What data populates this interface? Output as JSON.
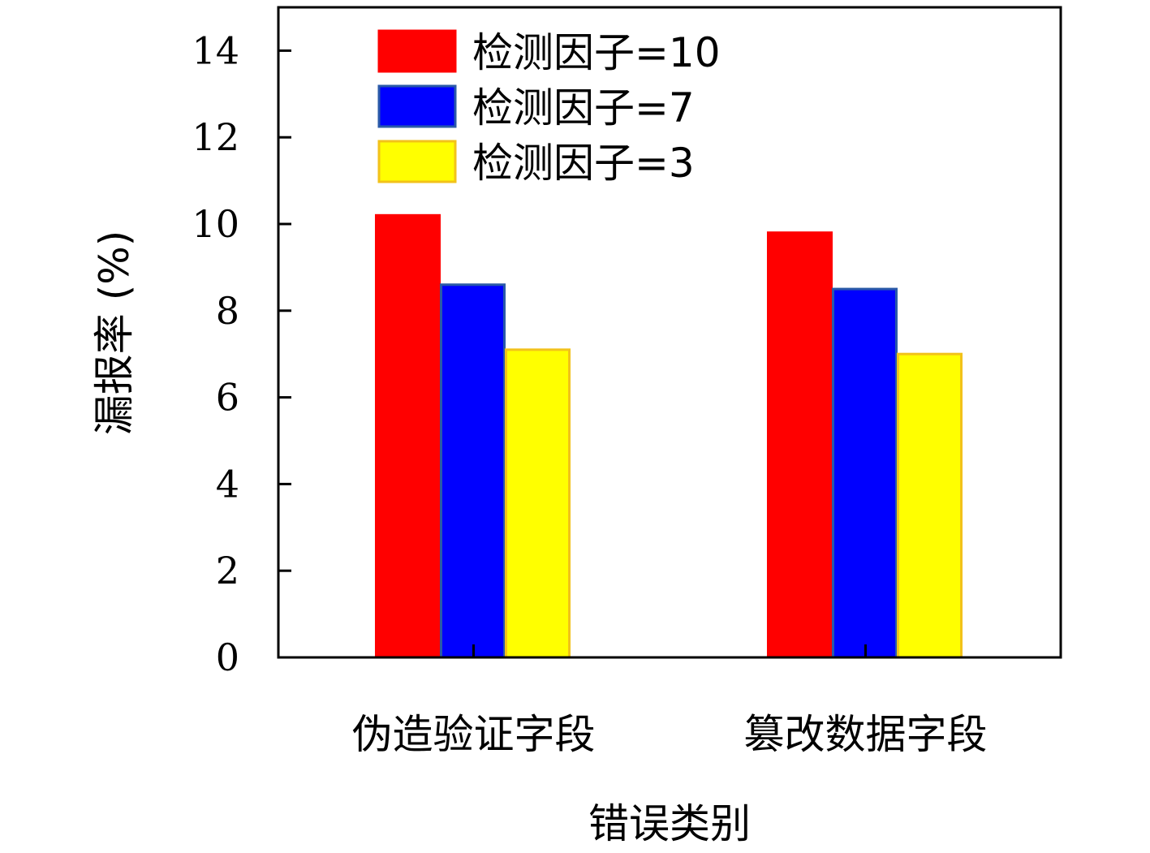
{
  "chart_data": {
    "type": "bar",
    "categories": [
      "伪造验证字段",
      "篡改数据字段"
    ],
    "series": [
      {
        "name": "检测因子=10",
        "values": [
          10.2,
          9.8
        ],
        "color": "#ff0000",
        "border": "#ff0000"
      },
      {
        "name": "检测因子=7",
        "values": [
          8.6,
          8.5
        ],
        "color": "#0000ff",
        "border": "#2a5aa8"
      },
      {
        "name": "检测因子=3",
        "values": [
          7.1,
          7.0
        ],
        "color": "#ffff00",
        "border": "#f2c21a"
      }
    ],
    "xlabel": "错误类别",
    "ylabel": "漏报率 (%)",
    "ylim": [
      0,
      15
    ],
    "yticks": [
      "0",
      "2",
      "4",
      "6",
      "8",
      "10",
      "12",
      "14"
    ],
    "legend_position": "top-left",
    "grid": false
  }
}
